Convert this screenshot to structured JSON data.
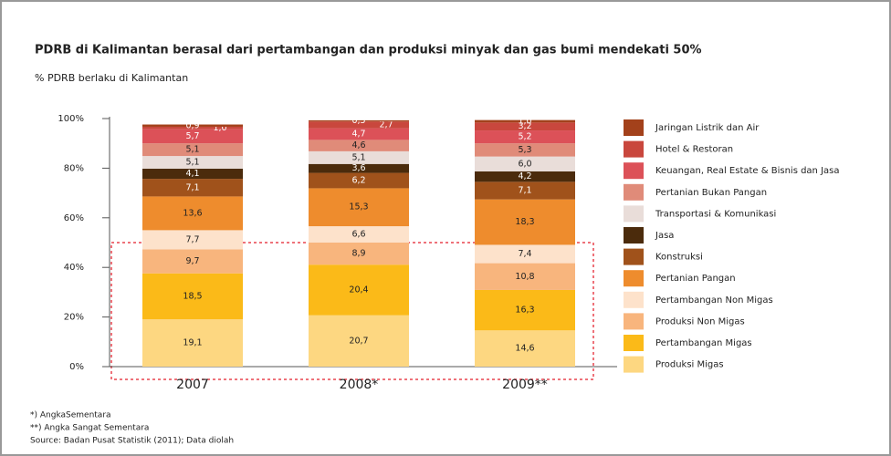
{
  "chart_data": {
    "type": "stacked-bar",
    "title": "PDRB di Kalimantan berasal dari pertambangan dan produksi minyak dan gas bumi mendekati 50%",
    "subtitle": "% PDRB berlaku di Kalimantan",
    "categories": [
      "2007",
      "2008*",
      "2009**"
    ],
    "ylim": [
      0,
      100
    ],
    "yticks": [
      {
        "value": 0,
        "label": "0%"
      },
      {
        "value": 20,
        "label": "20%"
      },
      {
        "value": 40,
        "label": "40%"
      },
      {
        "value": 60,
        "label": "60%"
      },
      {
        "value": 80,
        "label": "80%"
      },
      {
        "value": 100,
        "label": "100%"
      }
    ],
    "series": [
      {
        "name": "Produksi Migas",
        "color": "#fdd781",
        "values": [
          19.1,
          20.7,
          14.6
        ],
        "value_labels": [
          "19,1",
          "20,7",
          "14,6"
        ]
      },
      {
        "name": "Pertambangan Migas",
        "color": "#fbba18",
        "values": [
          18.5,
          20.4,
          16.3
        ],
        "value_labels": [
          "18,5",
          "20,4",
          "16,3"
        ]
      },
      {
        "name": "Produksi Non Migas",
        "color": "#f8b57d",
        "values": [
          9.7,
          8.9,
          10.8
        ],
        "value_labels": [
          "9,7",
          "8,9",
          "10,8"
        ]
      },
      {
        "name": "Pertambangan Non Migas",
        "color": "#fde2cb",
        "values": [
          7.7,
          6.6,
          7.4
        ],
        "value_labels": [
          "7,7",
          "6,6",
          "7,4"
        ]
      },
      {
        "name": "Pertanian Pangan",
        "color": "#ee8c2d",
        "values": [
          13.6,
          15.3,
          18.3
        ],
        "value_labels": [
          "13,6",
          "15,3",
          "18,3"
        ]
      },
      {
        "name": "Konstruksi",
        "color": "#a0521b",
        "values": [
          7.1,
          6.2,
          7.1
        ],
        "value_labels": [
          "7,1",
          "6,2",
          "7,1"
        ]
      },
      {
        "name": "Jasa",
        "color": "#4b2b0c",
        "values": [
          4.1,
          3.6,
          4.2
        ],
        "value_labels": [
          "4,1",
          "3,6",
          "4,2"
        ]
      },
      {
        "name": "Transportasi & Komunikasi",
        "color": "#e9ddd9",
        "values": [
          5.1,
          5.1,
          6.0
        ],
        "value_labels": [
          "5,1",
          "5,1",
          "6,0"
        ]
      },
      {
        "name": "Pertanian Bukan Pangan",
        "color": "#e08b79",
        "values": [
          5.1,
          4.6,
          5.3
        ],
        "value_labels": [
          "5,1",
          "4,6",
          "5,3"
        ]
      },
      {
        "name": "Keuangan, Real Estate & Bisnis dan Jasa",
        "color": "#dc5158",
        "values": [
          5.7,
          4.7,
          5.2
        ],
        "value_labels": [
          "5,7",
          "4,7",
          "5,2"
        ]
      },
      {
        "name": "Hotel & Restoran",
        "color": "#c9473d",
        "values": [
          1.0,
          2.7,
          3.2
        ],
        "value_labels": [
          "1,0",
          "2,7",
          "3,2"
        ]
      },
      {
        "name": "Jaringan Listrik dan Air",
        "color": "#a3411b",
        "values": [
          0.9,
          0.5,
          1.0
        ],
        "value_labels": [
          "0,9",
          "0,5",
          "1,0"
        ]
      }
    ],
    "notes": [
      "*) AngkaSementara",
      "**) Angka Sangat Sementara",
      "Source: Badan Pusat Statistik (2011); Data diolah"
    ]
  }
}
